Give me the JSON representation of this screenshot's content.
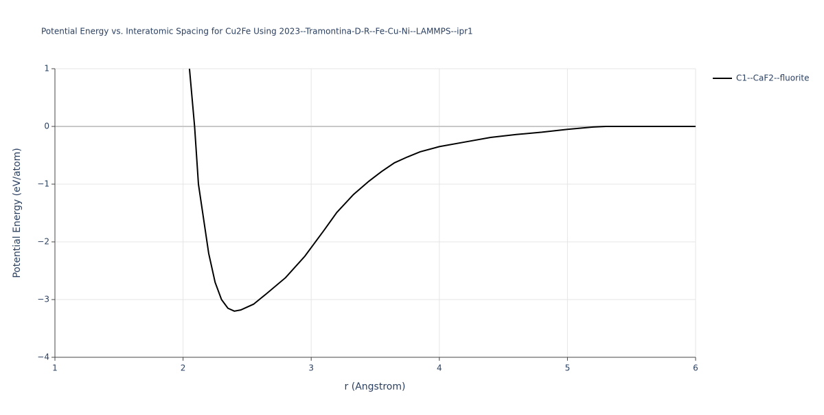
{
  "chart_data": {
    "type": "line",
    "title": "Potential Energy vs. Interatomic Spacing for Cu2Fe Using 2023--Tramontina-D-R--Fe-Cu-Ni--LAMMPS--ipr1",
    "x_label": "r (Angstrom)",
    "y_label": "Potential Energy (eV/atom)",
    "x": [
      2.05,
      2.09,
      2.12,
      2.15,
      2.2,
      2.25,
      2.3,
      2.35,
      2.4,
      2.45,
      2.55,
      2.65,
      2.8,
      2.95,
      3.1,
      3.2,
      3.33,
      3.45,
      3.55,
      3.65,
      3.75,
      3.85,
      4.0,
      4.2,
      4.4,
      4.6,
      4.8,
      5.0,
      5.2,
      5.3,
      5.6,
      6.0
    ],
    "series": [
      {
        "name": "C1--CaF2--fluorite",
        "color": "#000000",
        "values": [
          1.0,
          0.0,
          -1.0,
          -1.45,
          -2.2,
          -2.7,
          -3.0,
          -3.15,
          -3.2,
          -3.18,
          -3.08,
          -2.9,
          -2.62,
          -2.25,
          -1.8,
          -1.49,
          -1.18,
          -0.95,
          -0.78,
          -0.63,
          -0.53,
          -0.44,
          -0.35,
          -0.27,
          -0.19,
          -0.14,
          -0.1,
          -0.05,
          -0.01,
          0.0,
          0.0,
          0.0
        ]
      }
    ],
    "xlim": [
      1,
      6
    ],
    "xticks": [
      1,
      2,
      3,
      4,
      5,
      6
    ],
    "ylim": [
      -4,
      1
    ],
    "yticks": [
      1,
      0,
      {
        "value": -1,
        "label": "−1"
      },
      {
        "value": -2,
        "label": "−2"
      },
      {
        "value": -3,
        "label": "−3"
      },
      {
        "value": -4,
        "label": "−4"
      }
    ],
    "grid": true,
    "legend": "right"
  }
}
